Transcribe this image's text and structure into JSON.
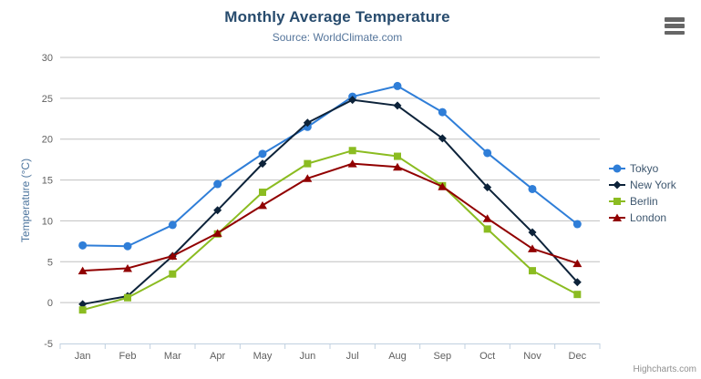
{
  "chart_data": {
    "type": "line",
    "title": "Monthly Average Temperature",
    "subtitle": "Source: WorldClimate.com",
    "xlabel": "",
    "ylabel": "Temperature (°C)",
    "ylim": [
      -5,
      30
    ],
    "yticks": [
      -5,
      0,
      5,
      10,
      15,
      20,
      25,
      30
    ],
    "grid": true,
    "legend_position": "right-middle",
    "categories": [
      "Jan",
      "Feb",
      "Mar",
      "Apr",
      "May",
      "Jun",
      "Jul",
      "Aug",
      "Sep",
      "Oct",
      "Nov",
      "Dec"
    ],
    "series": [
      {
        "name": "Tokyo",
        "color": "#2f7ed8",
        "marker": "circle",
        "values": [
          7.0,
          6.9,
          9.5,
          14.5,
          18.2,
          21.5,
          25.2,
          26.5,
          23.3,
          18.3,
          13.9,
          9.6
        ]
      },
      {
        "name": "New York",
        "color": "#0d233a",
        "marker": "diamond",
        "values": [
          -0.2,
          0.8,
          5.7,
          11.3,
          17.0,
          22.0,
          24.8,
          24.1,
          20.1,
          14.1,
          8.6,
          2.5
        ]
      },
      {
        "name": "Berlin",
        "color": "#8bbc21",
        "marker": "square",
        "values": [
          -0.9,
          0.6,
          3.5,
          8.4,
          13.5,
          17.0,
          18.6,
          17.9,
          14.3,
          9.0,
          3.9,
          1.0
        ]
      },
      {
        "name": "London",
        "color": "#910000",
        "marker": "triangle",
        "values": [
          3.9,
          4.2,
          5.7,
          8.5,
          11.9,
          15.2,
          17.0,
          16.6,
          14.2,
          10.3,
          6.6,
          4.8
        ]
      }
    ]
  },
  "credits": "Highcharts.com",
  "export_menu_icon": "hamburger-icon",
  "colors": {
    "title": "#274b6d",
    "subtitle": "#55759b",
    "axis_labels": "#606060",
    "yaxis_title": "#4d759e",
    "gridline": "#c0c0c0",
    "axis_line": "#c0d0e0",
    "legend_text": "#3e576f",
    "credits_text": "#909090",
    "menu_icon": "#666666"
  }
}
